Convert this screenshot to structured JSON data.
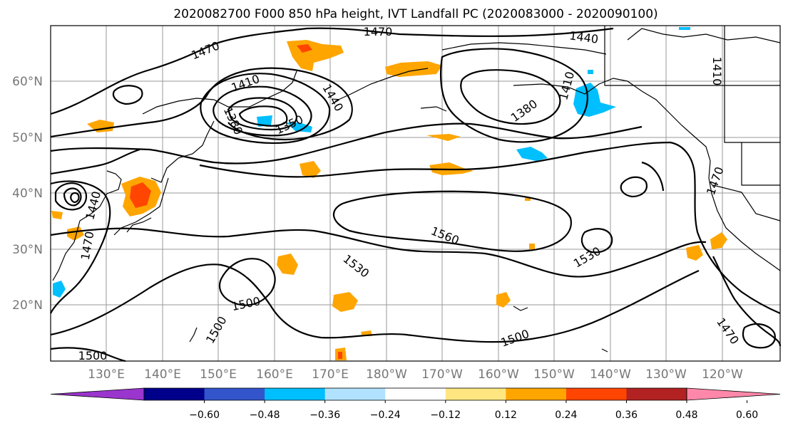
{
  "title": "2020082700 F000 850 hPa height, IVT Landfall PC (2020083000 - 2020090100)",
  "lat_labels": [
    "60°N",
    "50°N",
    "40°N",
    "30°N",
    "20°N"
  ],
  "lon_labels": [
    "130°E",
    "140°E",
    "150°E",
    "160°E",
    "170°E",
    "180°W",
    "170°W",
    "160°W",
    "150°W",
    "140°W",
    "130°W",
    "120°W"
  ],
  "contour_labels": {
    "c1470_top": "1470",
    "c1470_nw": "1470",
    "c1440_top": "1440",
    "c1440_low": "1440",
    "c1410_low": "1410",
    "c1380_low": "1380",
    "c1350_low": "1350",
    "c1410_ak": "1410",
    "c1380_ak": "1380",
    "c1410_ne": "1410",
    "c1470_east": "1470",
    "c1560": "1560",
    "c1530_w": "1530",
    "c1530_e": "1530",
    "c1500_w": "1500",
    "c1500_sw": "1500",
    "c1500_s": "1500",
    "c1470_se": "1470",
    "c1470_wpac": "1470",
    "c1440_jp": "1440",
    "c1500_corner": "1500"
  },
  "colorbar": {
    "ticks": [
      "−0.60",
      "−0.48",
      "−0.36",
      "−0.24",
      "−0.12",
      "0.12",
      "0.24",
      "0.36",
      "0.48",
      "0.60"
    ],
    "colors": [
      "#9a35cd",
      "#00008b",
      "#3355cc",
      "#00bfff",
      "#b0e2ff",
      "#ffffff",
      "#ffe680",
      "#ffa500",
      "#ff4500",
      "#b22222",
      "#ff88aa"
    ]
  }
}
